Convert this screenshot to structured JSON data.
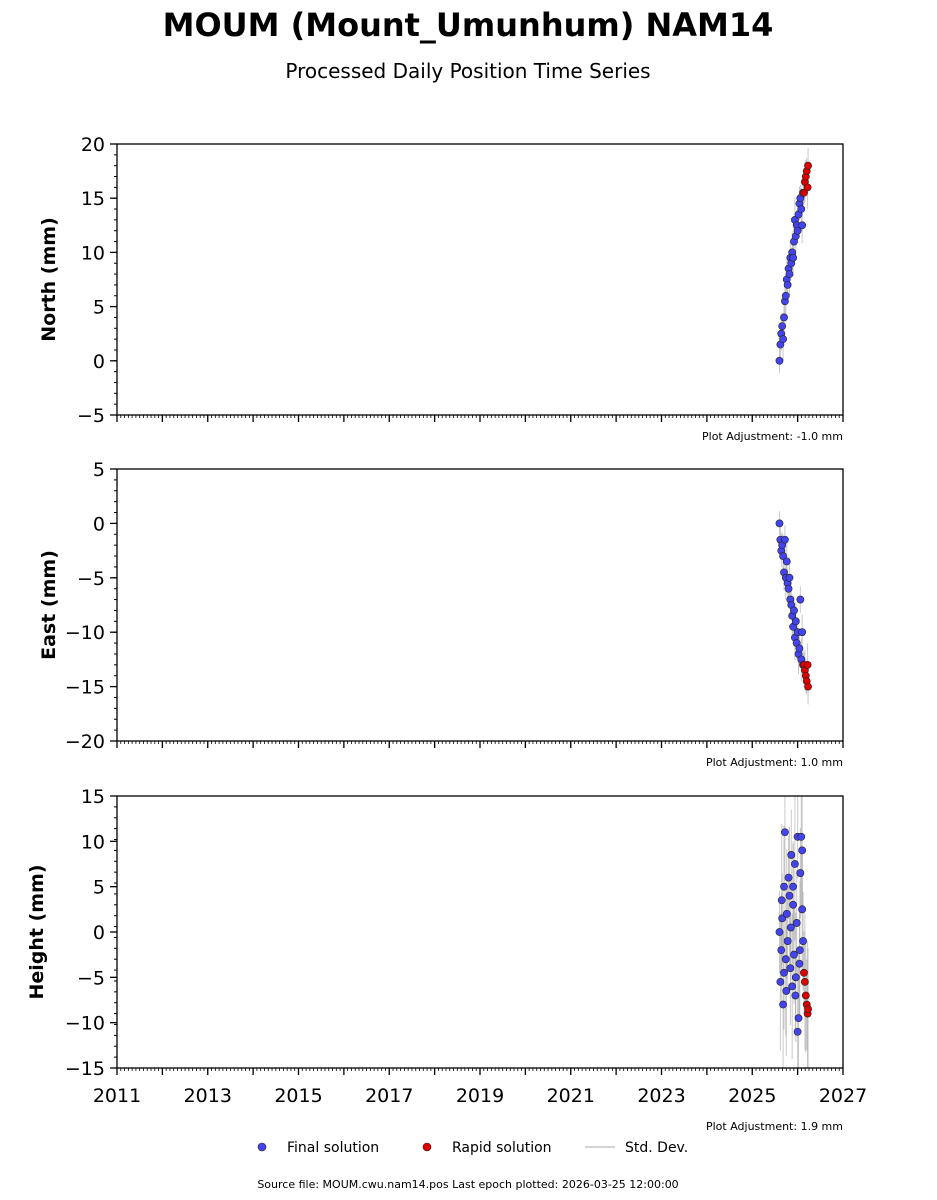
{
  "title": "MOUM (Mount_Umunhum) NAM14",
  "subtitle": "Processed Daily Position Time Series",
  "legend": {
    "final": "Final solution",
    "rapid": "Rapid solution",
    "std": "Std. Dev."
  },
  "footer": "Source file: MOUM.cwu.nam14.pos  Last epoch plotted: 2026-03-25 12:00:00",
  "colors": {
    "final": "#4444ee",
    "rapid": "#dd0000",
    "std": "#888888"
  },
  "chart_data": [
    {
      "type": "scatter",
      "ylabel": "North (mm)",
      "adjustment": "Plot Adjustment: -1.0 mm",
      "xlim": [
        2011,
        2027
      ],
      "ylim": [
        -5,
        20
      ],
      "yticks": [
        -5,
        0,
        5,
        10,
        15,
        20
      ],
      "series": [
        {
          "name": "Final solution",
          "x": [
            2025.6,
            2025.62,
            2025.64,
            2025.66,
            2025.68,
            2025.7,
            2025.72,
            2025.74,
            2025.76,
            2025.78,
            2025.8,
            2025.82,
            2025.84,
            2025.86,
            2025.88,
            2025.9,
            2025.92,
            2025.94,
            2025.96,
            2025.98,
            2026.0,
            2026.02,
            2026.04,
            2026.06,
            2026.08,
            2026.1,
            2026.12
          ],
          "y": [
            0.0,
            1.5,
            2.5,
            3.2,
            2.0,
            4.0,
            5.5,
            6.0,
            7.5,
            7.0,
            8.5,
            8.0,
            9.5,
            9.0,
            10.0,
            9.5,
            11.0,
            13.0,
            11.5,
            12.5,
            12.0,
            13.5,
            14.5,
            15.0,
            14.0,
            12.5,
            15.5
          ]
        },
        {
          "name": "Rapid solution",
          "x": [
            2026.14,
            2026.16,
            2026.18,
            2026.2,
            2026.22,
            2026.23
          ],
          "y": [
            15.5,
            16.5,
            17.0,
            17.5,
            16.0,
            18.0
          ]
        }
      ]
    },
    {
      "type": "scatter",
      "ylabel": "East (mm)",
      "adjustment": "Plot Adjustment: 1.0 mm",
      "xlim": [
        2011,
        2027
      ],
      "ylim": [
        -20,
        5
      ],
      "yticks": [
        -20,
        -15,
        -10,
        -5,
        0,
        5
      ],
      "series": [
        {
          "name": "Final solution",
          "x": [
            2025.6,
            2025.62,
            2025.64,
            2025.66,
            2025.68,
            2025.7,
            2025.72,
            2025.74,
            2025.76,
            2025.78,
            2025.8,
            2025.82,
            2025.84,
            2025.86,
            2025.88,
            2025.9,
            2025.92,
            2025.94,
            2025.96,
            2025.98,
            2026.0,
            2026.02,
            2026.04,
            2026.06,
            2026.08,
            2026.1,
            2026.12
          ],
          "y": [
            0.0,
            -1.5,
            -2.5,
            -2.0,
            -3.0,
            -4.5,
            -1.5,
            -5.0,
            -3.5,
            -5.5,
            -6.0,
            -5.0,
            -7.0,
            -7.5,
            -8.5,
            -9.5,
            -8.0,
            -10.5,
            -9.0,
            -11.0,
            -10.0,
            -12.0,
            -11.5,
            -7.0,
            -12.5,
            -10.0,
            -13.0
          ]
        },
        {
          "name": "Rapid solution",
          "x": [
            2026.14,
            2026.16,
            2026.18,
            2026.2,
            2026.22,
            2026.23
          ],
          "y": [
            -13.0,
            -13.5,
            -14.0,
            -14.5,
            -13.0,
            -15.0
          ]
        }
      ]
    },
    {
      "type": "scatter",
      "ylabel": "Height (mm)",
      "adjustment": "Plot Adjustment: 1.9 mm",
      "xlim": [
        2011,
        2027
      ],
      "ylim": [
        -15,
        15
      ],
      "yticks": [
        -15,
        -10,
        -5,
        0,
        5,
        10,
        15
      ],
      "xticks": [
        2011,
        2013,
        2015,
        2017,
        2019,
        2021,
        2023,
        2025,
        2027
      ],
      "series": [
        {
          "name": "Final solution",
          "x": [
            2025.6,
            2025.62,
            2025.64,
            2025.66,
            2025.68,
            2025.7,
            2025.72,
            2025.74,
            2025.76,
            2025.78,
            2025.8,
            2025.82,
            2025.84,
            2025.86,
            2025.88,
            2025.9,
            2025.92,
            2025.94,
            2025.96,
            2025.98,
            2026.0,
            2026.02,
            2026.04,
            2026.06,
            2026.08,
            2026.1,
            2026.12,
            2025.65,
            2025.75,
            2025.85,
            2025.95,
            2026.05,
            2025.7,
            2025.9,
            2026.0,
            2026.1
          ],
          "y": [
            0.0,
            -5.5,
            -2.0,
            1.5,
            -8.0,
            5.0,
            11.0,
            -3.0,
            2.0,
            -1.0,
            6.0,
            4.0,
            -4.0,
            8.5,
            -6.0,
            3.0,
            -2.5,
            7.5,
            -5.0,
            1.0,
            10.5,
            -9.5,
            -3.5,
            6.5,
            10.5,
            9.0,
            -1.0,
            3.5,
            -6.5,
            0.5,
            -7.0,
            -2.0,
            -4.5,
            5.0,
            -11.0,
            2.5
          ]
        },
        {
          "name": "Rapid solution",
          "x": [
            2026.14,
            2026.16,
            2026.18,
            2026.2,
            2026.22,
            2026.23
          ],
          "y": [
            -4.5,
            -5.5,
            -7.0,
            -8.0,
            -9.0,
            -8.5
          ]
        }
      ]
    }
  ]
}
